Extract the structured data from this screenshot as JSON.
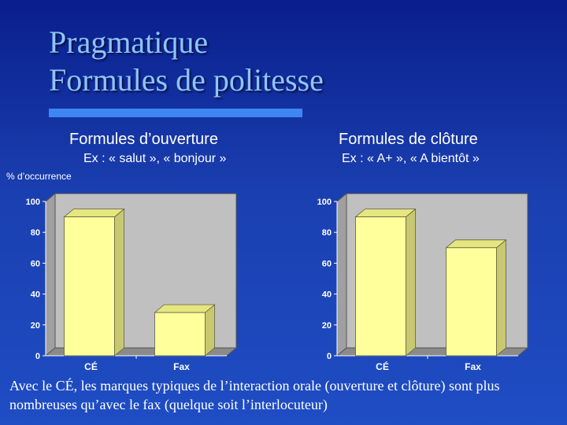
{
  "title_lines": [
    "Pragmatique",
    "Formules de politesse"
  ],
  "columns": [
    {
      "heading": "Formules d’ouverture",
      "example": "Ex : « salut », « bonjour »"
    },
    {
      "heading": "Formules de clôture",
      "example": "Ex : « A+ », « A bientôt »"
    }
  ],
  "y_axis_label": "% d’occurrence",
  "chart_data": [
    {
      "type": "bar",
      "categories": [
        "CÉ",
        "Fax"
      ],
      "values": [
        90,
        28
      ],
      "ylim": [
        0,
        100
      ],
      "yticks": [
        0,
        20,
        40,
        60,
        80,
        100
      ],
      "grid": false
    },
    {
      "type": "bar",
      "categories": [
        "CÉ",
        "Fax"
      ],
      "values": [
        90,
        70
      ],
      "ylim": [
        0,
        100
      ],
      "yticks": [
        0,
        20,
        40,
        60,
        80,
        100
      ],
      "grid": false
    }
  ],
  "colors": {
    "bar": "#ffff9c",
    "chart_background": "#c0c0c0",
    "title": "#8ec4ff"
  },
  "caption": "Avec le CÉ, les marques typiques de l’interaction orale (ouverture et clôture) sont plus nombreuses qu’avec le fax (quelque soit l’interlocuteur)"
}
